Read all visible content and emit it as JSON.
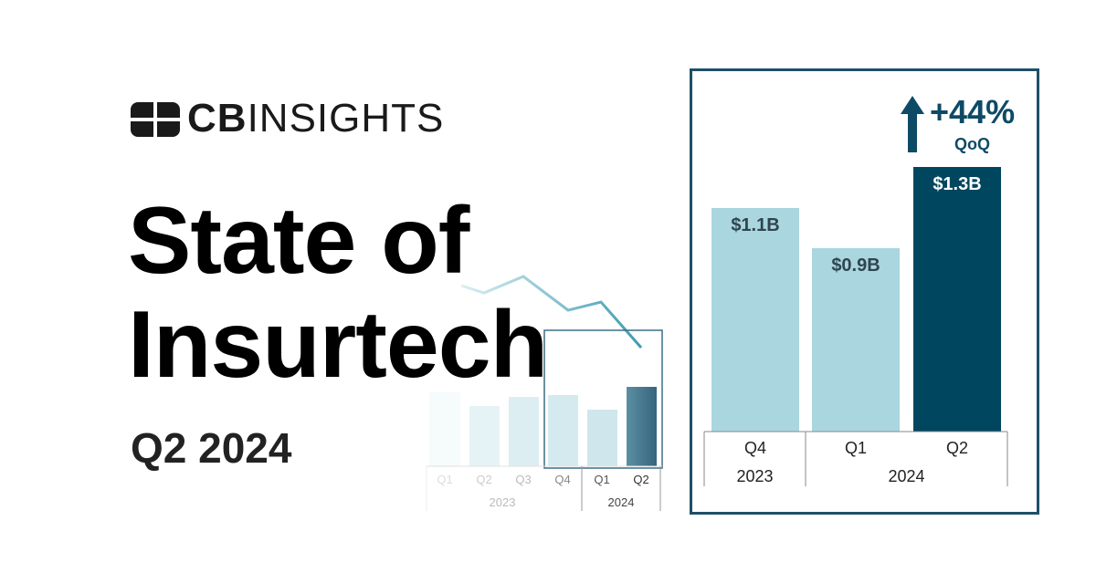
{
  "brand": {
    "logo_text_bold": "CB",
    "logo_text_light": "INSIGHTS"
  },
  "title": {
    "line1": "State of",
    "line2": "Insurtech",
    "subtitle": "Q2 2024"
  },
  "background_chart": {
    "quarters": [
      "Q1",
      "Q2",
      "Q3",
      "Q4",
      "Q1",
      "Q2"
    ],
    "years": [
      "2023",
      "2024"
    ]
  },
  "highlight": {
    "delta": "+44%",
    "delta_period": "QoQ",
    "arrow_icon": "arrow-up-icon"
  },
  "colors": {
    "accent": "#00465f",
    "light_bar": "#aad6df",
    "frame": "#1e4f67"
  },
  "chart_data": {
    "type": "bar",
    "categories": [
      "Q4",
      "Q1",
      "Q2"
    ],
    "years": [
      {
        "label": "2023",
        "span": 1
      },
      {
        "label": "2024",
        "span": 2
      }
    ],
    "values": [
      1.1,
      0.9,
      1.3
    ],
    "data_labels": [
      "$1.1B",
      "$0.9B",
      "$1.3B"
    ],
    "colors": [
      "#aad6df",
      "#aad6df",
      "#00465f"
    ],
    "title": "",
    "xlabel": "",
    "ylabel": "",
    "ylim": [
      0,
      1.3
    ]
  }
}
